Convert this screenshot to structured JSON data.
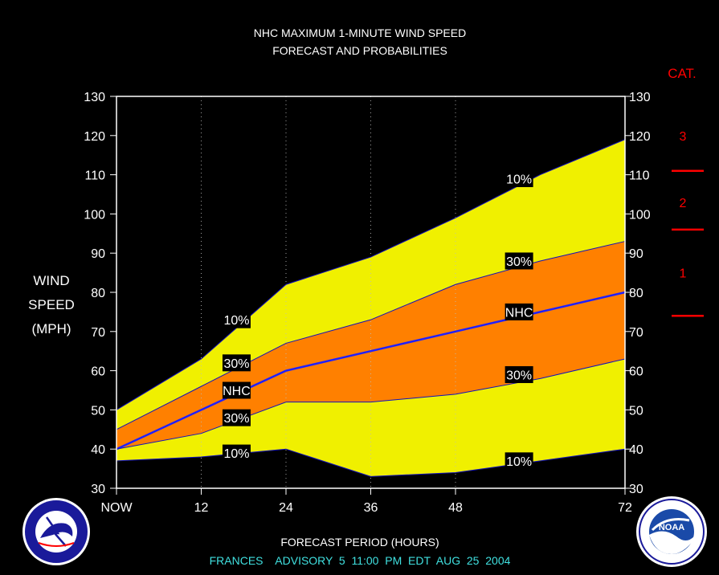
{
  "title_lines": [
    "NHC MAXIMUM 1-MINUTE WIND SPEED",
    "FORECAST AND PROBABILITIES"
  ],
  "ylabel_lines": [
    "WIND",
    "SPEED",
    "(MPH)"
  ],
  "xlabel": "FORECAST PERIOD (HOURS)",
  "advisory": "FRANCES    ADVISORY  5  11:00  PM  EDT  AUG  25  2004",
  "category_header": "CAT.",
  "categories": [
    {
      "label": "3",
      "mid": 120
    },
    {
      "label": "2",
      "mid": 103
    },
    {
      "label": "1",
      "mid": 85
    }
  ],
  "category_boundaries": [
    111,
    96,
    74
  ],
  "colors": {
    "outer_band": "#f0f000",
    "inner_band": "#ff8000",
    "nhc_line": "#2020ff",
    "edge_line": "#1010c0",
    "category": "#ff0000",
    "advisory": "#40e0e0",
    "background": "#000000"
  },
  "logos": {
    "nws": "NATIONAL WEATHER SERVICE",
    "noaa": "NOAA"
  },
  "chart_data": {
    "type": "area",
    "x": [
      0,
      12,
      24,
      36,
      48,
      60,
      72
    ],
    "xticks": [
      {
        "value": 0,
        "label": "NOW"
      },
      {
        "value": 12,
        "label": "12"
      },
      {
        "value": 24,
        "label": "24"
      },
      {
        "value": 36,
        "label": "36"
      },
      {
        "value": 48,
        "label": "48"
      },
      {
        "value": 72,
        "label": "72"
      }
    ],
    "xlim": [
      0,
      72
    ],
    "ylim": [
      30,
      130
    ],
    "yticks": [
      30,
      40,
      50,
      60,
      70,
      80,
      90,
      100,
      110,
      120,
      130
    ],
    "band_x": [
      0,
      12,
      24,
      36,
      48,
      60,
      72
    ],
    "series": [
      {
        "name": "10%",
        "role": "upper_outer",
        "values": [
          50,
          63,
          82,
          89,
          99,
          110,
          119
        ]
      },
      {
        "name": "30%",
        "role": "upper_inner",
        "values": [
          45,
          56,
          67,
          73,
          82,
          88,
          93
        ]
      },
      {
        "name": "NHC",
        "role": "forecast",
        "values": [
          40,
          50,
          60,
          65,
          70,
          75,
          80
        ]
      },
      {
        "name": "30%",
        "role": "lower_inner",
        "values": [
          40,
          44,
          52,
          52,
          54,
          58,
          63
        ]
      },
      {
        "name": "10%",
        "role": "lower_outer",
        "values": [
          37,
          38,
          40,
          33,
          34,
          37,
          40
        ]
      }
    ],
    "grid_x": [
      12,
      24,
      36,
      48,
      72
    ],
    "labels": [
      {
        "text": "10%",
        "x": 17,
        "y": 73
      },
      {
        "text": "30%",
        "x": 17,
        "y": 62
      },
      {
        "text": "NHC",
        "x": 17,
        "y": 55
      },
      {
        "text": "30%",
        "x": 17,
        "y": 48
      },
      {
        "text": "10%",
        "x": 17,
        "y": 39
      },
      {
        "text": "10%",
        "x": 57,
        "y": 109
      },
      {
        "text": "30%",
        "x": 57,
        "y": 88
      },
      {
        "text": "NHC",
        "x": 57,
        "y": 75
      },
      {
        "text": "30%",
        "x": 57,
        "y": 59
      },
      {
        "text": "10%",
        "x": 57,
        "y": 37
      }
    ]
  }
}
